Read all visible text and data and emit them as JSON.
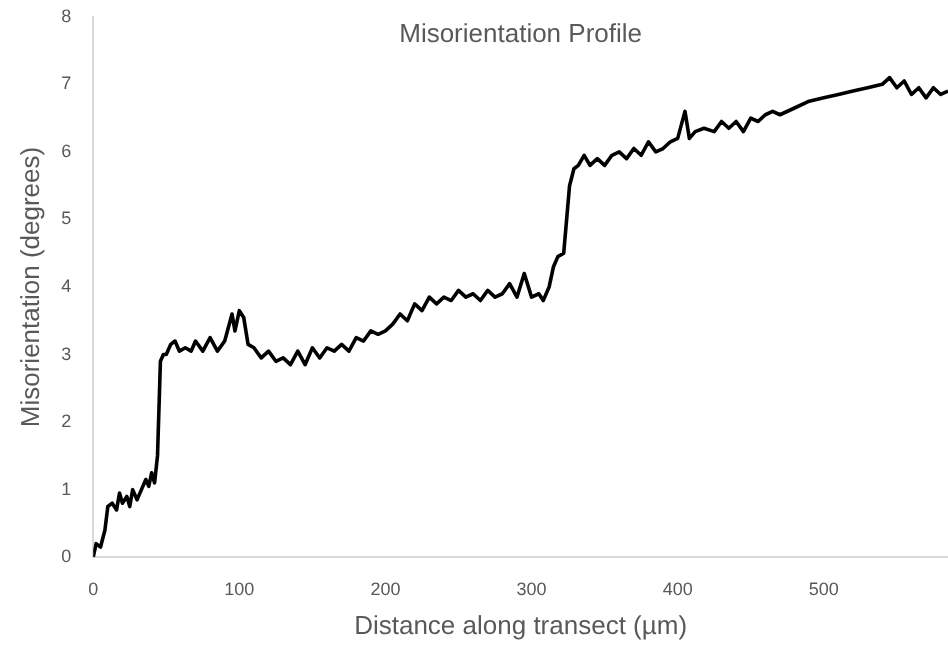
{
  "chart_data": {
    "type": "line",
    "title": "Misorientation Profile",
    "xlabel": "Distance along transect (µm)",
    "ylabel": "Misorientation (degrees)",
    "xlim": [
      0,
      585
    ],
    "xticks": [
      0,
      100,
      200,
      300,
      400,
      500
    ],
    "ylim": [
      0,
      8
    ],
    "yticks": [
      0,
      1,
      2,
      3,
      4,
      5,
      6,
      7,
      8
    ],
    "grid": false,
    "legend": false,
    "marker": "none",
    "line_style": "solid",
    "series": [
      {
        "color": "#000000",
        "x": [
          0,
          2,
          5,
          8,
          10,
          13,
          16,
          18,
          20,
          23,
          25,
          27,
          30,
          33,
          36,
          38,
          40,
          42,
          44,
          46,
          48,
          50,
          53,
          56,
          59,
          63,
          67,
          70,
          75,
          80,
          85,
          90,
          95,
          97,
          100,
          103,
          106,
          110,
          115,
          120,
          125,
          130,
          135,
          140,
          145,
          150,
          155,
          160,
          165,
          170,
          175,
          180,
          185,
          190,
          195,
          200,
          205,
          210,
          215,
          220,
          225,
          230,
          235,
          240,
          245,
          250,
          255,
          260,
          265,
          270,
          275,
          280,
          285,
          290,
          295,
          300,
          305,
          308,
          312,
          315,
          318,
          322,
          326,
          329,
          332,
          336,
          340,
          345,
          350,
          355,
          360,
          365,
          370,
          375,
          380,
          385,
          390,
          395,
          400,
          405,
          408,
          412,
          418,
          425,
          430,
          435,
          440,
          445,
          450,
          455,
          460,
          465,
          470,
          480,
          490,
          500,
          510,
          520,
          530,
          540,
          545,
          550,
          555,
          560,
          565,
          570,
          575,
          580,
          585
        ],
        "values": [
          0,
          0.2,
          0.15,
          0.4,
          0.75,
          0.8,
          0.7,
          0.95,
          0.8,
          0.9,
          0.75,
          1.0,
          0.85,
          1.0,
          1.15,
          1.05,
          1.25,
          1.1,
          1.5,
          2.9,
          3.0,
          3.0,
          3.15,
          3.2,
          3.05,
          3.1,
          3.05,
          3.2,
          3.05,
          3.25,
          3.05,
          3.2,
          3.6,
          3.35,
          3.65,
          3.55,
          3.15,
          3.1,
          2.95,
          3.05,
          2.9,
          2.95,
          2.85,
          3.05,
          2.85,
          3.1,
          2.95,
          3.1,
          3.05,
          3.15,
          3.05,
          3.25,
          3.2,
          3.35,
          3.3,
          3.35,
          3.45,
          3.6,
          3.5,
          3.75,
          3.65,
          3.85,
          3.75,
          3.85,
          3.8,
          3.95,
          3.85,
          3.9,
          3.8,
          3.95,
          3.85,
          3.9,
          4.05,
          3.85,
          4.2,
          3.85,
          3.9,
          3.8,
          4.0,
          4.3,
          4.45,
          4.5,
          5.5,
          5.75,
          5.8,
          5.95,
          5.8,
          5.9,
          5.8,
          5.95,
          6.0,
          5.9,
          6.05,
          5.95,
          6.15,
          6.0,
          6.05,
          6.15,
          6.2,
          6.6,
          6.2,
          6.3,
          6.35,
          6.3,
          6.45,
          6.35,
          6.45,
          6.3,
          6.5,
          6.45,
          6.55,
          6.6,
          6.55,
          6.65,
          6.75,
          6.8,
          6.85,
          6.9,
          6.95,
          7.0,
          7.1,
          6.95,
          7.05,
          6.85,
          6.95,
          6.8,
          6.95,
          6.85,
          6.9
        ]
      }
    ]
  }
}
